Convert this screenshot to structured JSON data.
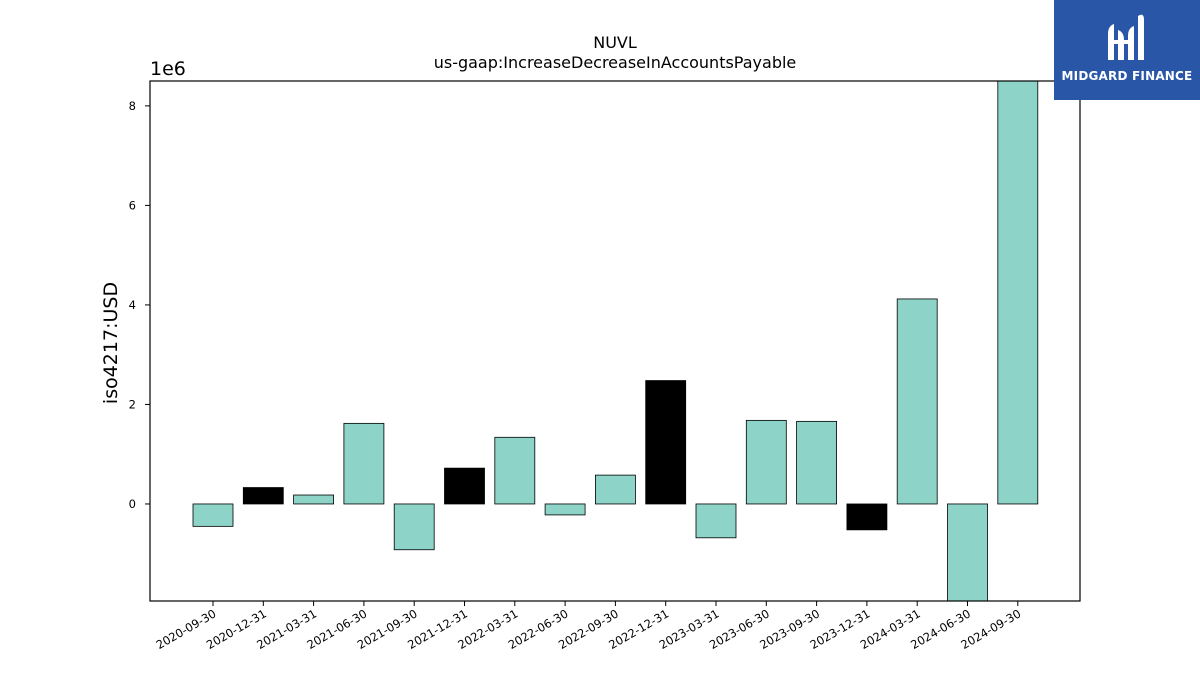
{
  "chart_data": {
    "type": "bar",
    "title": "NUVL",
    "subtitle": "us-gaap:IncreaseDecreaseInAccountsPayable",
    "ylabel": "iso4217:USD",
    "xlabel": "",
    "y_scale_label": "1e6",
    "y_multiplier": 1000000,
    "ylim": [
      -1.95,
      8.5
    ],
    "yticks": [
      0,
      2,
      4,
      6,
      8
    ],
    "categories": [
      "2020-09-30",
      "2020-12-31",
      "2021-03-31",
      "2021-06-30",
      "2021-09-30",
      "2021-12-31",
      "2022-03-31",
      "2022-06-30",
      "2022-09-30",
      "2022-12-31",
      "2023-03-31",
      "2023-06-30",
      "2023-09-30",
      "2023-12-31",
      "2024-03-31",
      "2024-06-30",
      "2024-09-30"
    ],
    "values": [
      -0.45,
      0.33,
      0.18,
      1.62,
      -0.92,
      0.72,
      1.34,
      -0.22,
      0.58,
      2.48,
      -0.68,
      1.68,
      1.66,
      -0.52,
      4.12,
      -1.95,
      8.5
    ],
    "bar_colors": [
      "#8dd3c7",
      "#000000",
      "#8dd3c7",
      "#8dd3c7",
      "#8dd3c7",
      "#000000",
      "#8dd3c7",
      "#8dd3c7",
      "#8dd3c7",
      "#000000",
      "#8dd3c7",
      "#8dd3c7",
      "#8dd3c7",
      "#000000",
      "#8dd3c7",
      "#8dd3c7",
      "#8dd3c7"
    ],
    "grid": false,
    "legend": "none"
  },
  "logo": {
    "text": "MIDGARD FINANCE",
    "background": "#2a56a8"
  }
}
